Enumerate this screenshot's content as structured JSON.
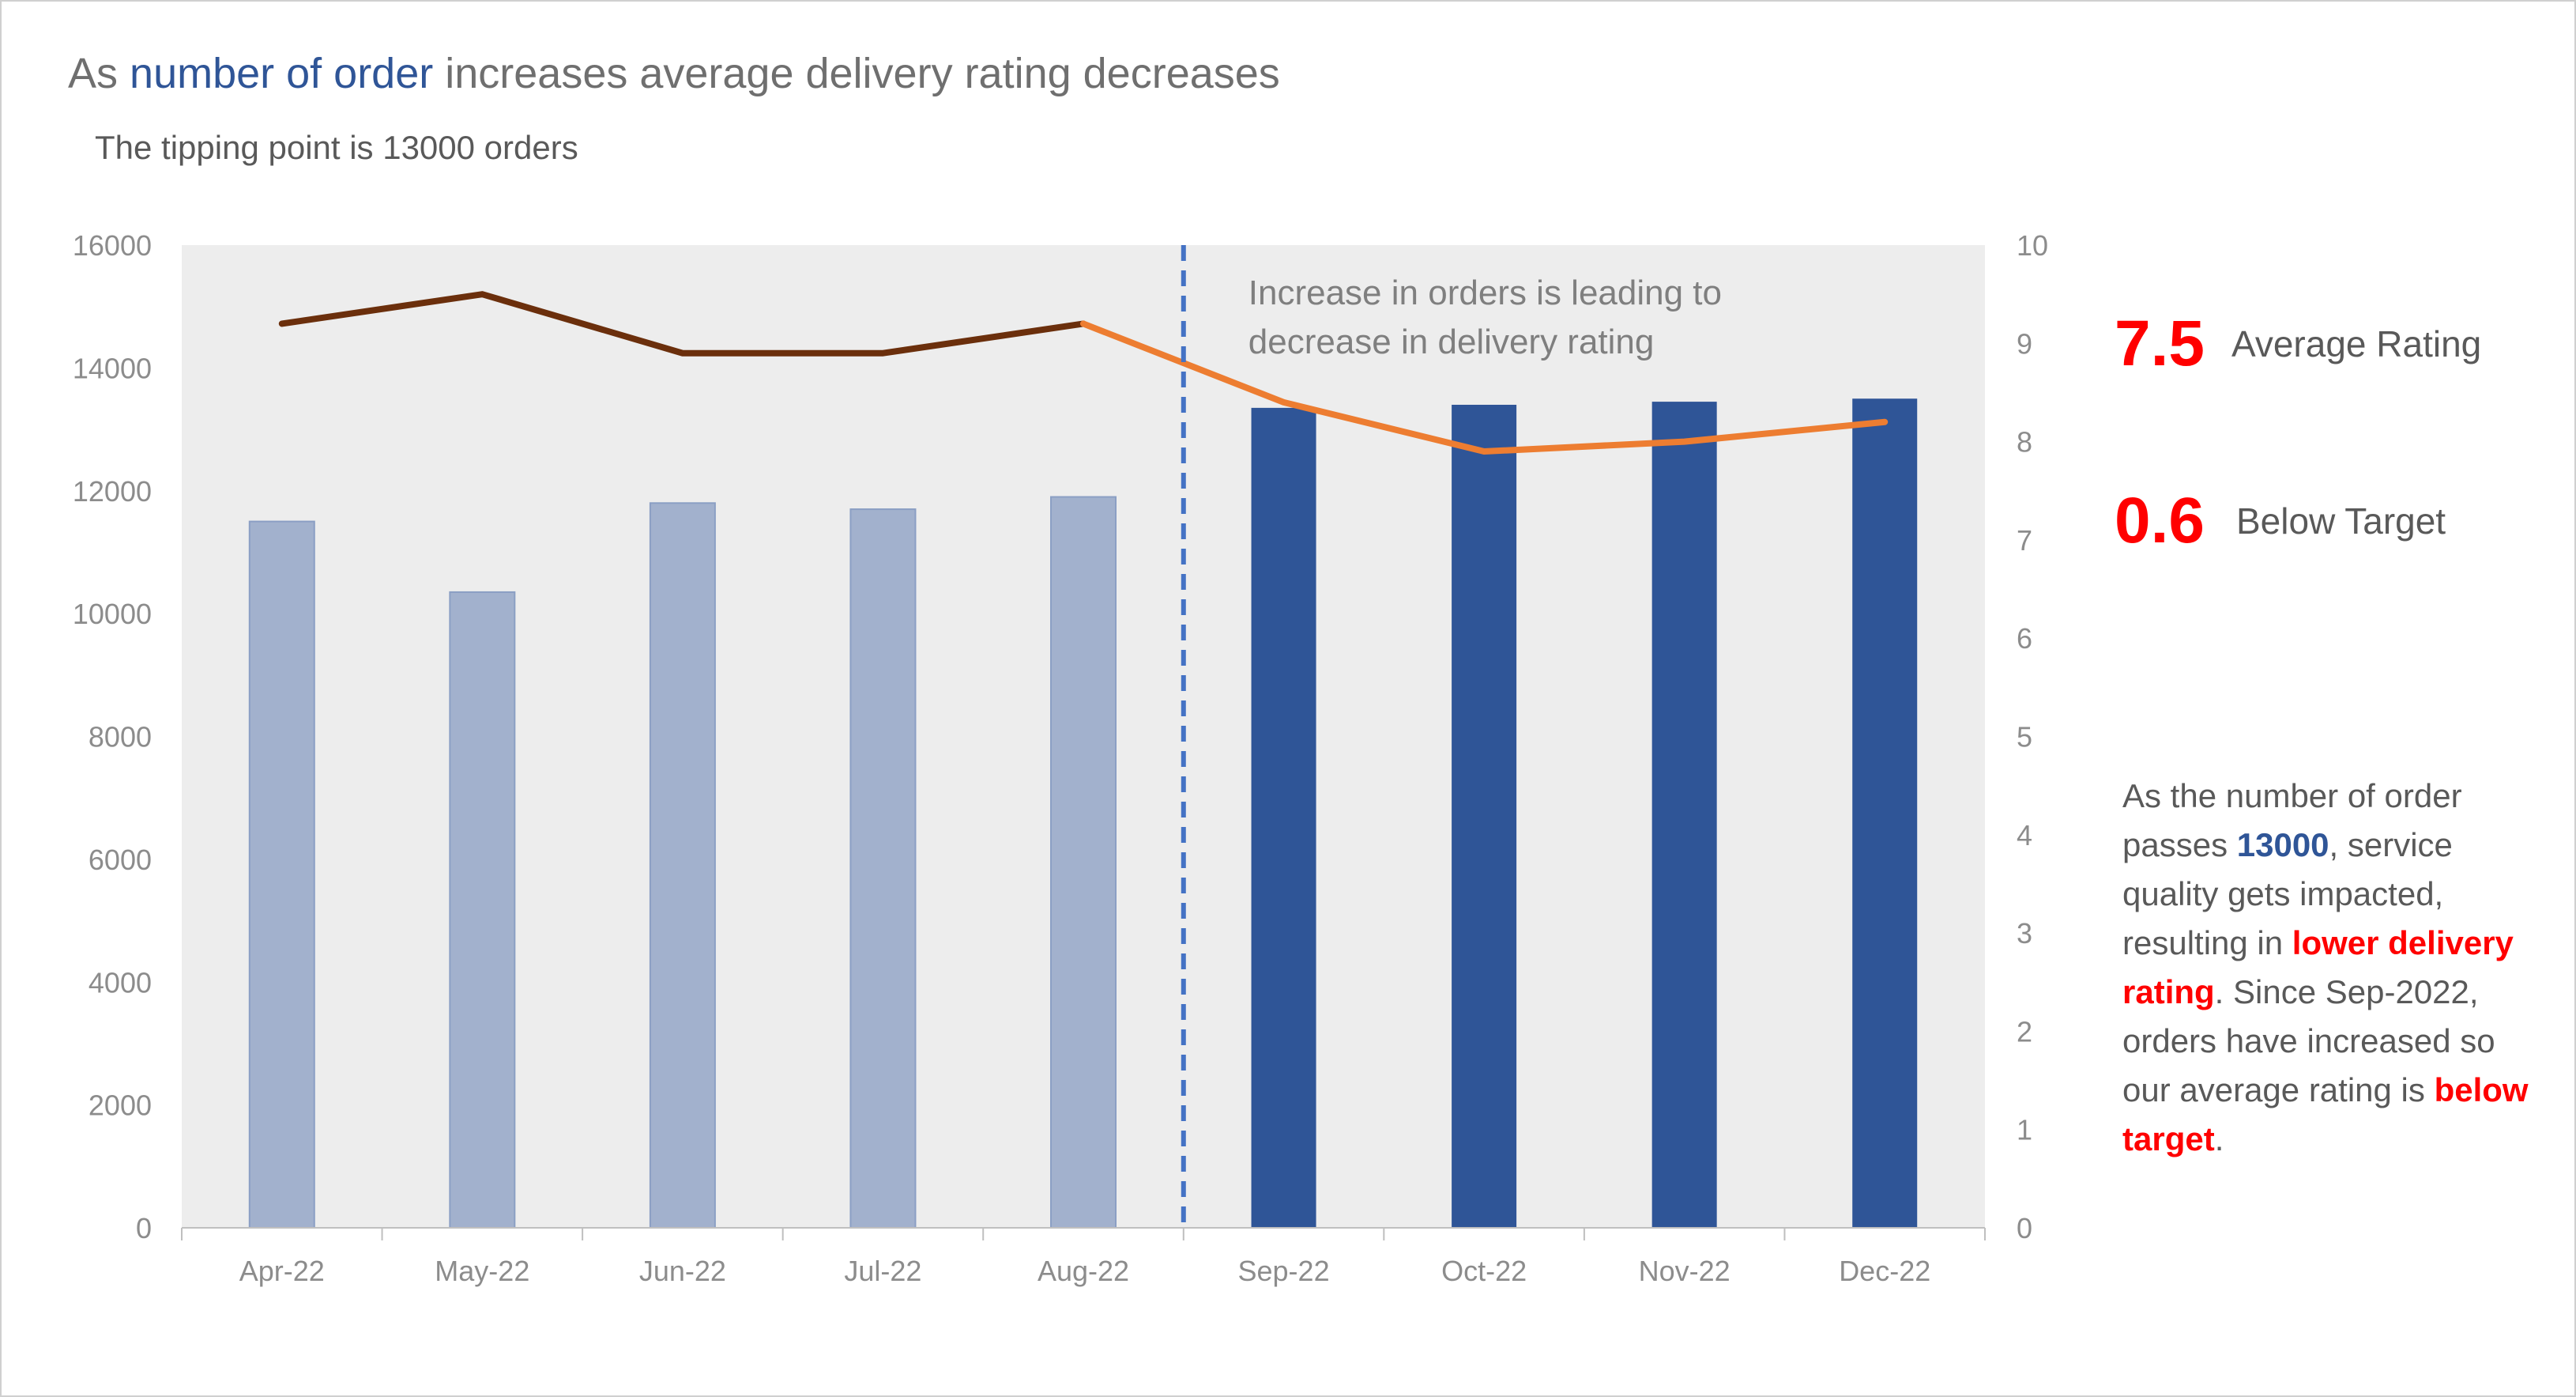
{
  "header": {
    "title_pre": "As ",
    "title_highlight": "number of order",
    "title_post": " increases average delivery rating decreases",
    "subtitle": "The tipping point is 13000 orders"
  },
  "kpis": [
    {
      "value": "7.5",
      "label": "Average Rating"
    },
    {
      "value": "0.6",
      "label": "Below Target"
    }
  ],
  "note": {
    "p1": "As the number of order passes ",
    "v1": "13000",
    "p2": ", service quality gets impacted, resulting in ",
    "v2": "lower delivery rating",
    "p3": ". Since Sep-2022, orders have increased so our average rating is ",
    "v3": "below target",
    "p4": "."
  },
  "chart_data": {
    "type": "bar+line",
    "categories": [
      "Apr-22",
      "May-22",
      "Jun-22",
      "Jul-22",
      "Aug-22",
      "Sep-22",
      "Oct-22",
      "Nov-22",
      "Dec-22"
    ],
    "series": [
      {
        "name": "Number of orders",
        "axis": "left",
        "type": "bar",
        "values": [
          11500,
          10350,
          11800,
          11700,
          11900,
          13350,
          13400,
          13450,
          13500
        ]
      },
      {
        "name": "Average delivery rating",
        "axis": "right",
        "type": "line",
        "values": [
          9.2,
          9.5,
          8.9,
          8.9,
          9.2,
          8.4,
          7.9,
          8.0,
          8.2
        ]
      }
    ],
    "y_left": {
      "min": 0,
      "max": 16000,
      "ticks": [
        "0",
        "2000",
        "4000",
        "6000",
        "8000",
        "10000",
        "12000",
        "14000",
        "16000"
      ]
    },
    "y_right": {
      "min": 0,
      "max": 10,
      "ticks": [
        "0",
        "1",
        "2",
        "3",
        "4",
        "5",
        "6",
        "7",
        "8",
        "9",
        "10"
      ]
    },
    "tipping_category_index": 5,
    "annotation_lines": [
      "Increase in orders is leading to",
      "decrease in delivery rating"
    ],
    "colors": {
      "bar_before": "#a2b1cd",
      "bar_before_border": "#8b9fc4",
      "bar_after": "#2f5597",
      "line_before": "#6b2f0c",
      "line_after": "#ed7d31",
      "tipping_line": "#4472c4",
      "plot_bg": "#ededed",
      "axis_text": "#8c8c8c",
      "annotation_text": "#7f7f7f"
    }
  }
}
